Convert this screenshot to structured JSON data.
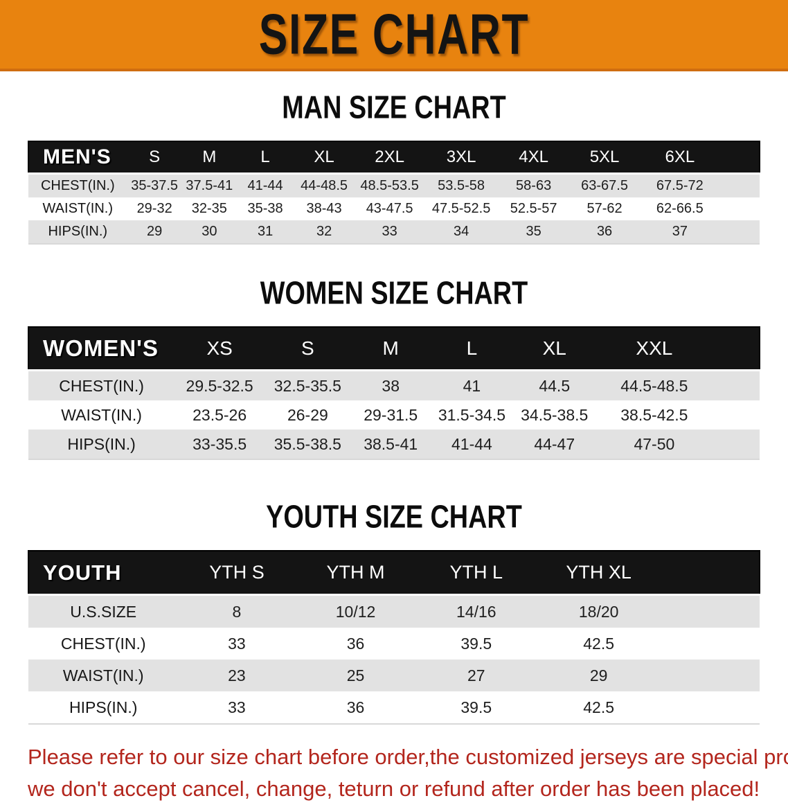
{
  "banner": {
    "title": "SIZE CHART"
  },
  "colors": {
    "banner_bg": "#E8830F",
    "banner_border": "#CF6D10",
    "banner_text": "#141414",
    "header_bar": "#141414",
    "header_text": "#FFFFFF",
    "row_gray": "#E2E2E2",
    "row_white": "#FFFFFF",
    "footer_text": "#B3261D"
  },
  "sections": [
    {
      "title": "MAN SIZE CHART",
      "table": {
        "header": [
          "MEN'S",
          "S",
          "M",
          "L",
          "XL",
          "2XL",
          "3XL",
          "4XL",
          "5XL",
          "6XL"
        ],
        "rows": [
          {
            "label": "CHEST(IN.)",
            "values": [
              "35-37.5",
              "37.5-41",
              "41-44",
              "44-48.5",
              "48.5-53.5",
              "53.5-58",
              "58-63",
              "63-67.5",
              "67.5-72"
            ]
          },
          {
            "label": "WAIST(IN.)",
            "values": [
              "29-32",
              "32-35",
              "35-38",
              "38-43",
              "43-47.5",
              "47.5-52.5",
              "52.5-57",
              "57-62",
              "62-66.5"
            ]
          },
          {
            "label": "HIPS(IN.)",
            "values": [
              "29",
              "30",
              "31",
              "32",
              "33",
              "34",
              "35",
              "36",
              "37"
            ]
          }
        ]
      }
    },
    {
      "title": "WOMEN SIZE CHART",
      "table": {
        "header": [
          "WOMEN'S",
          "XS",
          "S",
          "M",
          "L",
          "XL",
          "XXL"
        ],
        "rows": [
          {
            "label": "CHEST(IN.)",
            "values": [
              "29.5-32.5",
              "32.5-35.5",
              "38",
              "41",
              "44.5",
              "44.5-48.5"
            ]
          },
          {
            "label": "WAIST(IN.)",
            "values": [
              "23.5-26",
              "26-29",
              "29-31.5",
              "31.5-34.5",
              "34.5-38.5",
              "38.5-42.5"
            ]
          },
          {
            "label": "HIPS(IN.)",
            "values": [
              "33-35.5",
              "35.5-38.5",
              "38.5-41",
              "41-44",
              "44-47",
              "47-50"
            ]
          }
        ]
      }
    },
    {
      "title": "YOUTH SIZE CHART",
      "table": {
        "header": [
          "YOUTH",
          "YTH S",
          "YTH M",
          "YTH L",
          "YTH XL"
        ],
        "rows": [
          {
            "label": "U.S.SIZE",
            "values": [
              "8",
              "10/12",
              "14/16",
              "18/20"
            ]
          },
          {
            "label": "CHEST(IN.)",
            "values": [
              "33",
              "36",
              "39.5",
              "42.5"
            ]
          },
          {
            "label": "WAIST(IN.)",
            "values": [
              "23",
              "25",
              "27",
              "29"
            ]
          },
          {
            "label": "HIPS(IN.)",
            "values": [
              "33",
              "36",
              "39.5",
              "42.5"
            ]
          }
        ]
      }
    }
  ],
  "footer": {
    "lines": [
      "Please refer to our size chart before order,the customized jerseys are special products,",
      "we don't accept cancel, change, teturn or refund after order has been placed!"
    ]
  }
}
